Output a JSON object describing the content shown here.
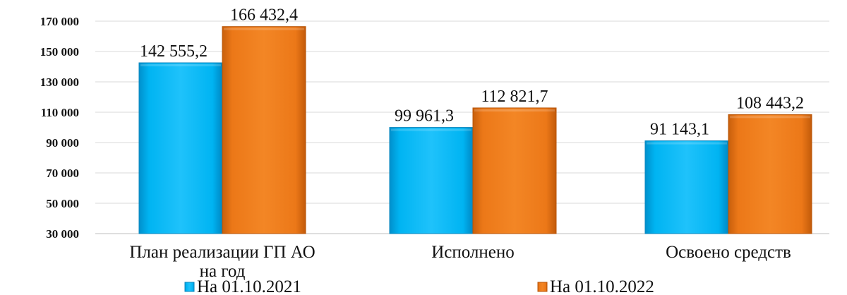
{
  "chart_data": {
    "type": "bar",
    "categories": [
      "План реализации ГП АО на год",
      "Исполнено",
      "Освоено средств"
    ],
    "category_lines": [
      [
        "План реализации ГП АО",
        "на год"
      ],
      [
        "Исполнено"
      ],
      [
        "Освоено средств"
      ]
    ],
    "series": [
      {
        "name": "На 01.10.2021",
        "color": "#00b0f0",
        "values": [
          142555.2,
          99961.3,
          91143.1
        ],
        "labels": [
          "142 555,2",
          "99 961,3",
          "91 143,1"
        ]
      },
      {
        "name": "На 01.10.2022",
        "color": "#e97418",
        "values": [
          166432.4,
          112821.7,
          108443.2
        ],
        "labels": [
          "166 432,4",
          "112 821,7",
          "108 443,2"
        ]
      }
    ],
    "ylim": [
      30000,
      170000
    ],
    "yticks": [
      30000,
      50000,
      70000,
      90000,
      110000,
      130000,
      150000,
      170000
    ],
    "ytick_labels": [
      "30 000",
      "50 000",
      "70 000",
      "90 000",
      "110 000",
      "130 000",
      "150 000",
      "170 000"
    ],
    "grid": true,
    "legend_position": "bottom",
    "title": "",
    "xlabel": "",
    "ylabel": ""
  }
}
